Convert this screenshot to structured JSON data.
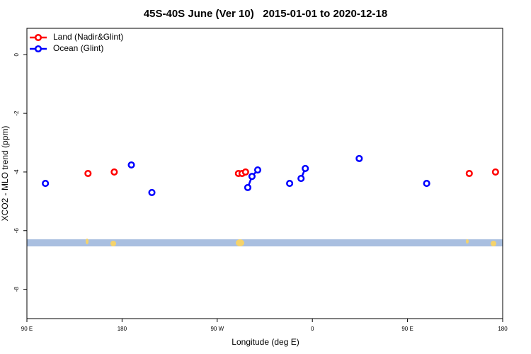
{
  "chart_data": {
    "type": "line",
    "title": "45S-40S June (Ver 10)   2015-01-01 to 2020-12-18",
    "x_label": "Longitude (deg E)",
    "y_label": "XCO2 - MLO trend (ppm)",
    "xlim": [
      90,
      540
    ],
    "xticks": [
      {
        "value": 90,
        "label": "90 E"
      },
      {
        "value": 180,
        "label": "180"
      },
      {
        "value": 270,
        "label": "90 W"
      },
      {
        "value": 360,
        "label": "0"
      },
      {
        "value": 450,
        "label": "90 E"
      },
      {
        "value": 540,
        "label": "180"
      }
    ],
    "ylim": [
      -9.0,
      0.9
    ],
    "yticks": [
      0,
      -2,
      -4,
      -6,
      -8
    ],
    "legend": "top-left",
    "series": [
      {
        "name": "Land (Nadir&Glint)",
        "color": "#ff0000",
        "x": [
          147.8,
          null,
          172.6,
          null,
          290.1,
          293.5,
          296.8,
          null,
          508.4,
          null,
          533.2
        ],
        "values": [
          -4.05,
          null,
          -4.0,
          null,
          -4.05,
          -4.05,
          -4.0,
          null,
          -4.05,
          null,
          -4.0
        ]
      },
      {
        "name": "Ocean (Glint)",
        "color": "#0000ff",
        "x": [
          107.5,
          null,
          188.8,
          null,
          208.2,
          null,
          298.9,
          302.9,
          308.3,
          null,
          338.5,
          null,
          349.3,
          353.3,
          null,
          404.3,
          null,
          468.1
        ],
        "values": [
          -4.39,
          null,
          -3.76,
          null,
          -4.7,
          null,
          -4.53,
          -4.15,
          -3.93,
          null,
          -4.39,
          null,
          -4.22,
          -3.88,
          null,
          -3.54,
          null,
          -4.39
        ]
      }
    ]
  }
}
